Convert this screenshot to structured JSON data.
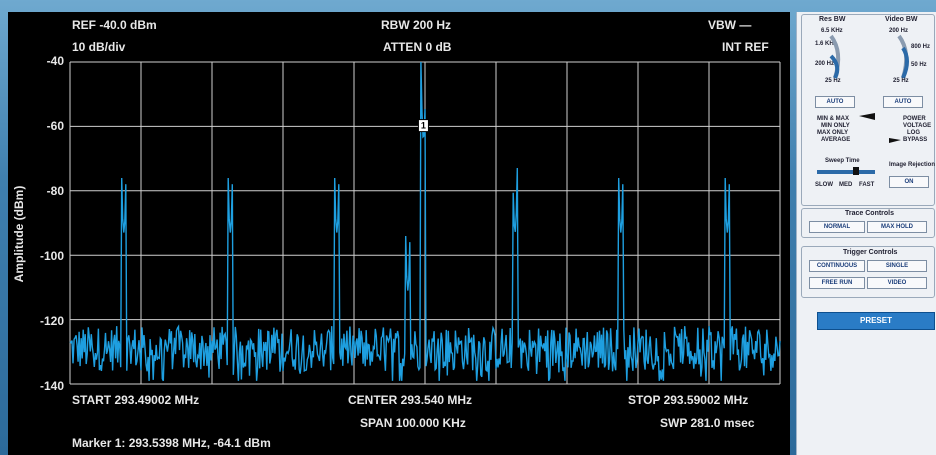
{
  "header": {
    "ref": "REF -40.0 dBm",
    "scale": "10 dB/div",
    "rbw": "RBW 200 Hz",
    "atten": "ATTEN 0 dB",
    "vbw": "VBW —",
    "int_ref": "INT REF"
  },
  "footer": {
    "start": "START 293.49002 MHz",
    "center": "CENTER 293.540 MHz",
    "stop": "STOP 293.59002 MHz",
    "span": "SPAN 100.000 KHz",
    "swp": "SWP 281.0 msec",
    "marker": "Marker 1: 293.5398 MHz, -64.1 dBm"
  },
  "marker_label": "1",
  "colors": {
    "trace": "#1e9fe0",
    "grid": "#cfcfcf",
    "background": "#000000"
  },
  "chart_data": {
    "type": "line",
    "ylabel": "Amplitude (dBm)",
    "yticks": [
      "-40",
      "-60",
      "-80",
      "-100",
      "-120",
      "-140"
    ],
    "ylim": [
      -140,
      -40
    ],
    "xlim": [
      293.49002,
      293.59002
    ],
    "x_unit": "MHz",
    "grid": true,
    "peaks": [
      {
        "x": 293.4976,
        "y": -93
      },
      {
        "x": 293.5126,
        "y": -93
      },
      {
        "x": 293.5276,
        "y": -93
      },
      {
        "x": 293.5376,
        "y": -111
      },
      {
        "x": 293.5398,
        "y": -64.1
      },
      {
        "x": 293.5527,
        "y": -93
      },
      {
        "x": 293.5676,
        "y": -93
      },
      {
        "x": 293.5826,
        "y": -93
      }
    ],
    "noise_floor": -129
  },
  "panel": {
    "res_bw": "Res BW",
    "video_bw": "Video BW",
    "res_ticks": [
      "6.5 KHz",
      "1.6 KHz",
      "200 Hz",
      "25 Hz"
    ],
    "video_ticks": [
      "200 Hz",
      "800 Hz",
      "50 Hz",
      "25 Hz"
    ],
    "auto1": "AUTO",
    "auto2": "AUTO",
    "detect_left": [
      "MIN & MAX",
      "MIN ONLY",
      "MAX ONLY",
      "AVERAGE"
    ],
    "detect_right": [
      "POWER",
      "VOLTAGE",
      "LOG",
      "BYPASS"
    ],
    "sweep_time": "Sweep Time",
    "sweep_ticks": [
      "SLOW",
      "MED",
      "FAST"
    ],
    "image_rejection": "Image Rejection",
    "image_on": "ON",
    "trace_controls": "Trace Controls",
    "normal": "NORMAL",
    "max_hold": "MAX HOLD",
    "trigger_controls": "Trigger Controls",
    "continuous": "CONTINUOUS",
    "single": "SINGLE",
    "free_run": "FREE RUN",
    "video": "VIDEO",
    "preset": "PRESET"
  }
}
